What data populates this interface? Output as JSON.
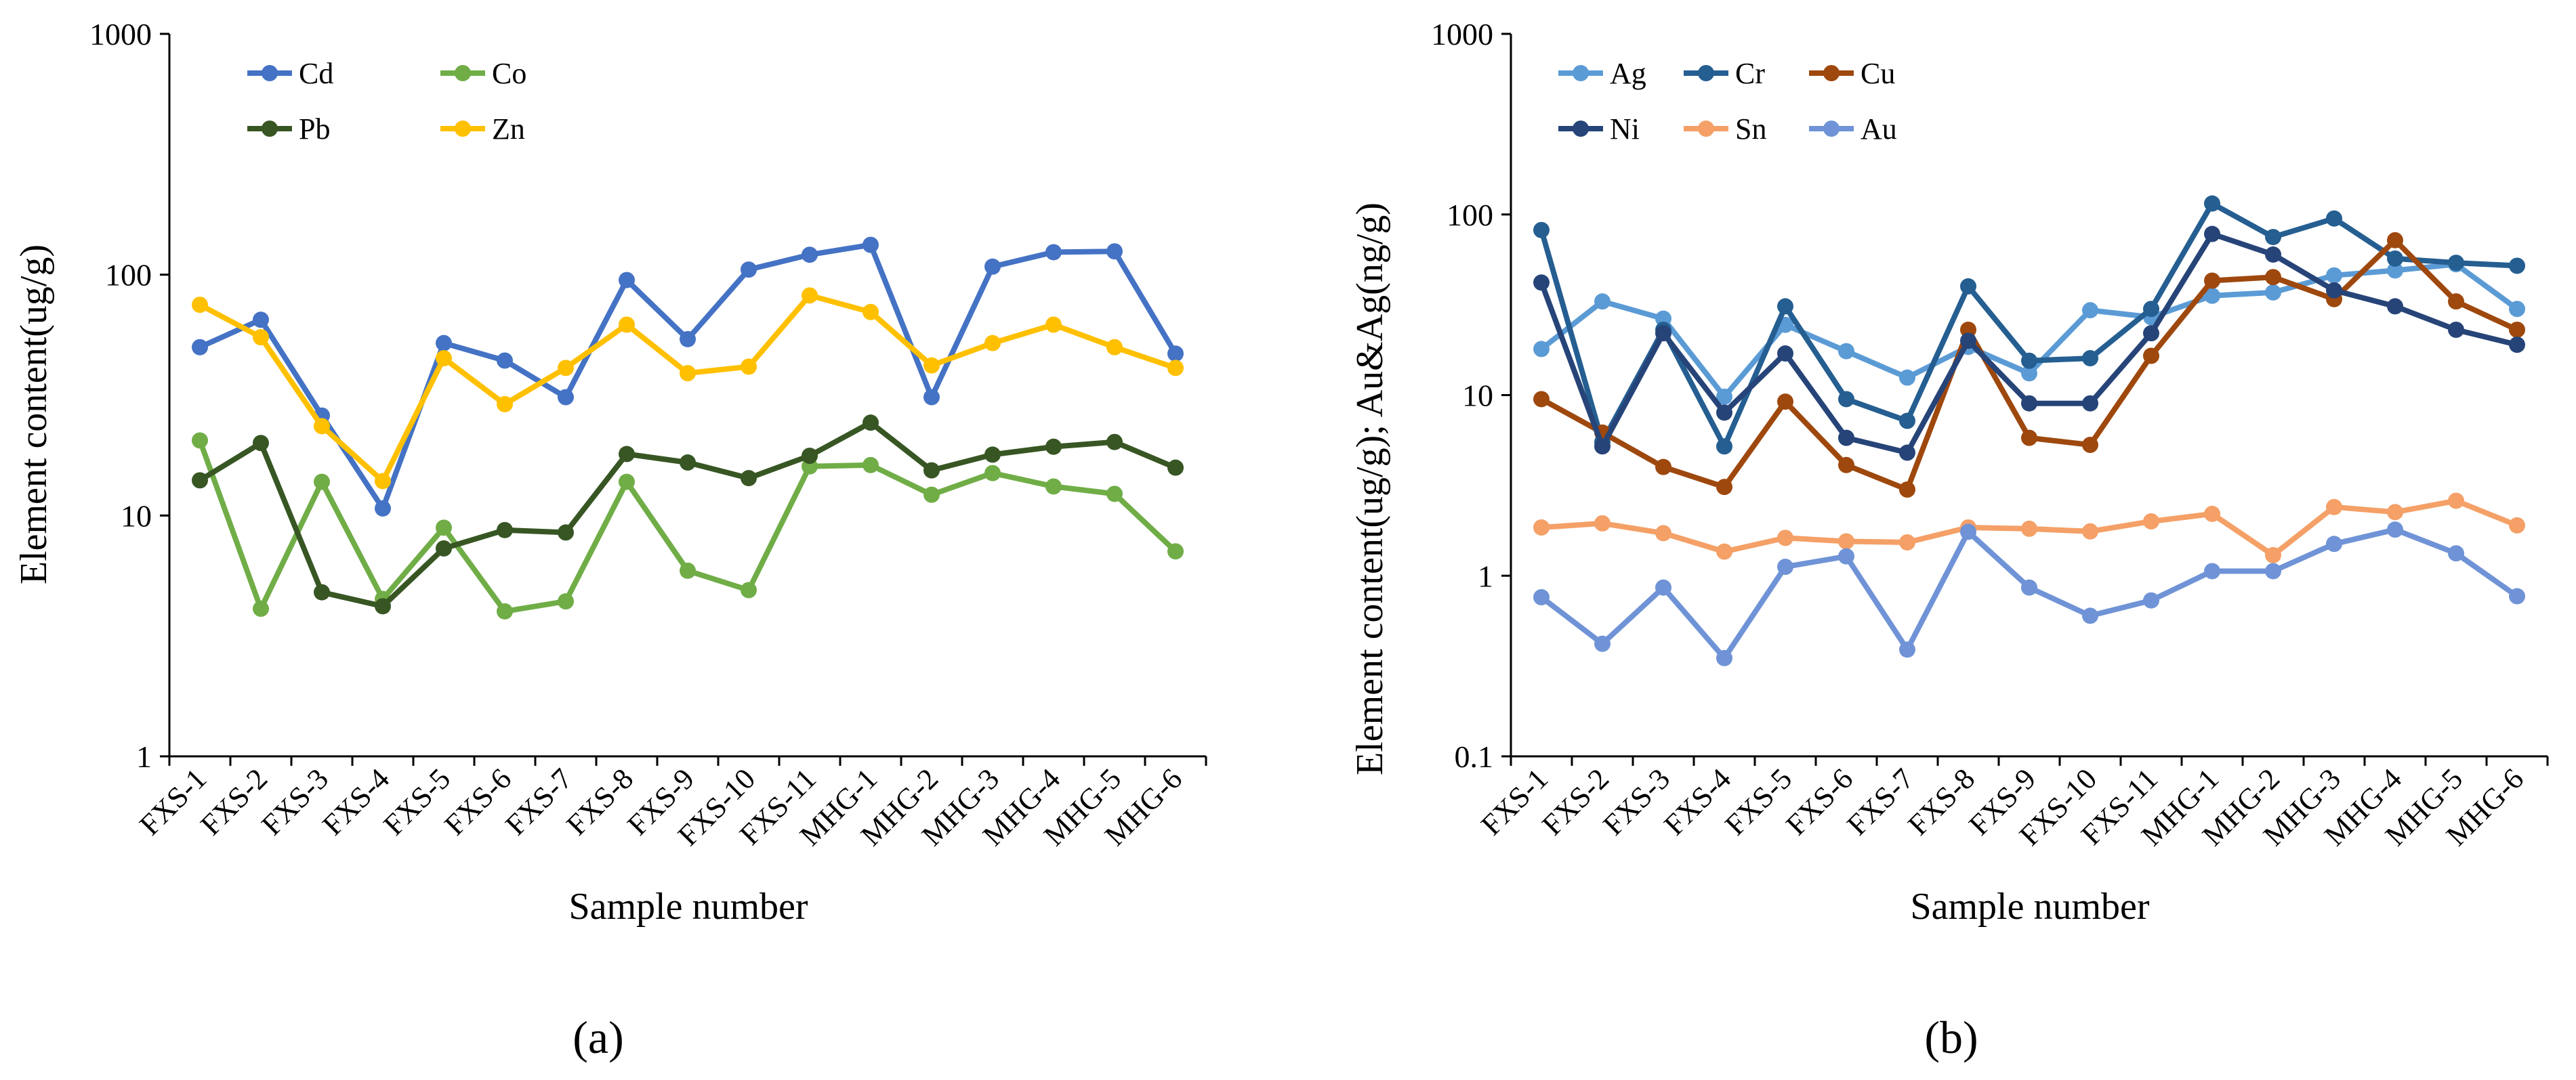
{
  "chart_data": [
    {
      "type": "line",
      "panel_label": "(a)",
      "title": "",
      "xlabel": "Sample number",
      "ylabel": "Element content(ug/g)",
      "yscale": "log",
      "ylim": [
        1,
        1000
      ],
      "yticks": [
        "1",
        "10",
        "100",
        "1000"
      ],
      "legend_placement": "top-left",
      "categories": [
        "FXS-1",
        "FXS-2",
        "FXS-3",
        "FXS-4",
        "FXS-5",
        "FXS-6",
        "FXS-7",
        "FXS-8",
        "FXS-9",
        "FXS-10",
        "FXS-11",
        "MHG-1",
        "MHG-2",
        "MHG-3",
        "MHG-4",
        "MHG-5",
        "MHG-6"
      ],
      "series": [
        {
          "name": "Cd",
          "color": "#4472C4",
          "values": [
            50,
            65,
            26,
            10.7,
            52,
            44,
            31,
            95,
            54,
            105,
            121,
            133,
            31,
            108,
            124,
            125,
            47
          ]
        },
        {
          "name": "Co",
          "color": "#70AD47",
          "values": [
            20.5,
            4.1,
            13.8,
            4.5,
            8.9,
            4,
            4.4,
            13.8,
            5.9,
            4.9,
            16,
            16.2,
            12.2,
            15,
            13.2,
            12.3,
            7.1
          ]
        },
        {
          "name": "Pb",
          "color": "#375623",
          "values": [
            14,
            20,
            4.8,
            4.2,
            7.3,
            8.7,
            8.5,
            18,
            16.6,
            14.3,
            17.7,
            24.3,
            15.4,
            17.9,
            19.3,
            20.2,
            15.8
          ]
        },
        {
          "name": "Zn",
          "color": "#FFC000",
          "values": [
            75,
            55,
            23.5,
            13.9,
            45,
            29,
            41,
            62,
            39,
            41.5,
            82,
            70,
            42,
            52,
            62,
            50,
            41
          ]
        }
      ]
    },
    {
      "type": "line",
      "panel_label": "(b)",
      "title": "",
      "xlabel": "Sample number",
      "ylabel": "Element content(ug/g); Au&Ag(ng/g)",
      "yscale": "log",
      "ylim": [
        0.1,
        1000
      ],
      "yticks": [
        "0.1",
        "1",
        "10",
        "100",
        "1000"
      ],
      "legend_placement": "top-left",
      "categories": [
        "FXS-1",
        "FXS-2",
        "FXS-3",
        "FXS-4",
        "FXS-5",
        "FXS-6",
        "FXS-7",
        "FXS-8",
        "FXS-9",
        "FXS-10",
        "FXS-11",
        "MHG-1",
        "MHG-2",
        "MHG-3",
        "MHG-4",
        "MHG-5",
        "MHG-6"
      ],
      "series": [
        {
          "name": "Ag",
          "color": "#5B9BD5",
          "values": [
            18,
            33,
            26.5,
            9.8,
            24.5,
            17.5,
            12.5,
            18.5,
            13.2,
            29.5,
            27,
            35.5,
            37,
            46,
            49,
            53,
            30
          ]
        },
        {
          "name": "Cr",
          "color": "#255E91",
          "values": [
            82,
            5.5,
            23,
            5.2,
            31,
            9.5,
            7.2,
            40,
            15.5,
            16,
            30,
            115,
            75,
            95,
            57,
            54,
            52
          ]
        },
        {
          "name": "Cu",
          "color": "#9E480E",
          "values": [
            9.5,
            6.2,
            4,
            3.1,
            9.2,
            4.1,
            3,
            23,
            5.8,
            5.3,
            16.5,
            43,
            45,
            34,
            72,
            33,
            23
          ]
        },
        {
          "name": "Ni",
          "color": "#264478",
          "values": [
            42,
            5.2,
            22,
            8,
            17,
            5.8,
            4.8,
            20,
            9,
            9,
            22,
            78,
            60,
            38,
            31,
            23,
            19
          ]
        },
        {
          "name": "Sn",
          "color": "#F4A067",
          "values": [
            1.85,
            1.95,
            1.72,
            1.36,
            1.62,
            1.55,
            1.53,
            1.85,
            1.82,
            1.76,
            2,
            2.2,
            1.3,
            2.4,
            2.25,
            2.6,
            1.9
          ]
        },
        {
          "name": "Au",
          "color": "#6F93D6",
          "values": [
            0.76,
            0.42,
            0.86,
            0.35,
            1.12,
            1.28,
            0.39,
            1.75,
            0.86,
            0.6,
            0.73,
            1.06,
            1.06,
            1.5,
            1.8,
            1.33,
            0.77
          ]
        }
      ]
    }
  ]
}
